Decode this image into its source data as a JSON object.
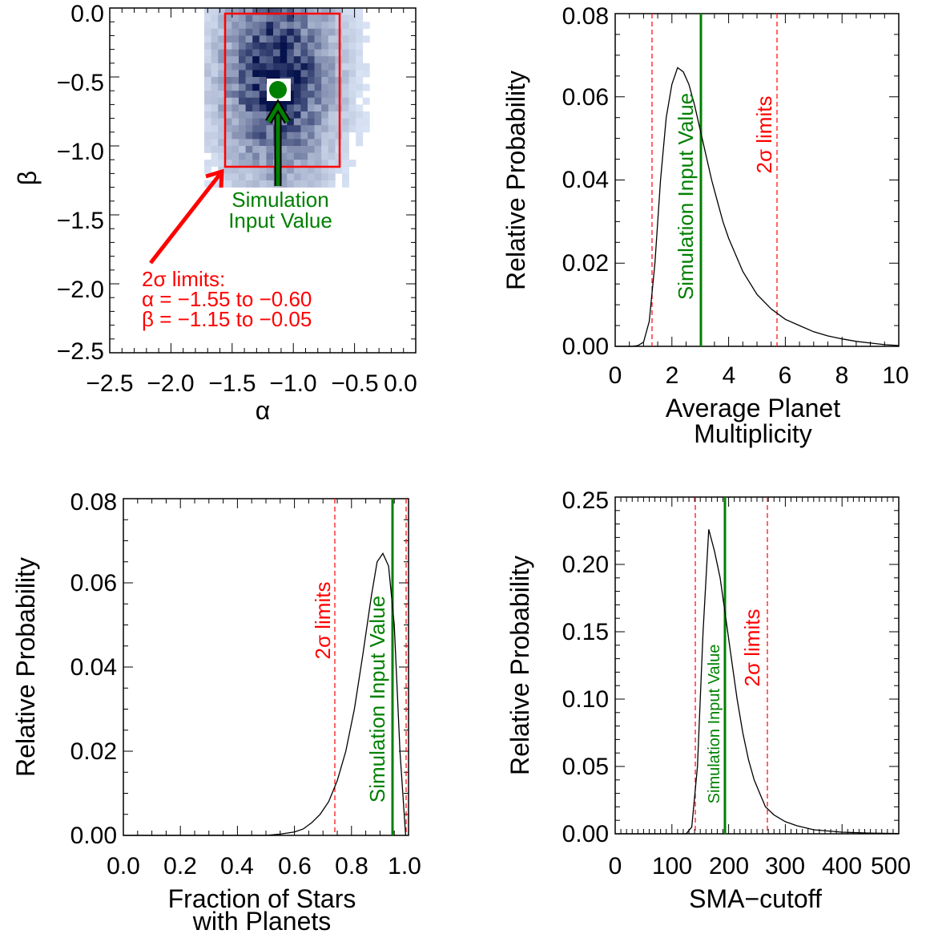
{
  "colors": {
    "red": "#ff0000",
    "green": "#008000",
    "curve": "#000000",
    "heat_low": "#e6f0ff",
    "heat_high": "#05124a"
  },
  "chart_data": [
    {
      "type": "heatmap",
      "xlabel": "α",
      "ylabel": "β",
      "xlim": [
        -2.5,
        0.0
      ],
      "ylim": [
        -2.5,
        0.0
      ],
      "xticks": [
        "−2.5",
        "−2.0",
        "−1.5",
        "−1.0",
        "−0.5",
        "0.0"
      ],
      "yticks": [
        "0.0",
        "−0.5",
        "−1.0",
        "−1.5",
        "−2.0",
        "−2.5"
      ],
      "limits_box": {
        "alpha": [
          -1.55,
          -0.6
        ],
        "beta": [
          -1.15,
          -0.05
        ]
      },
      "input_value": {
        "alpha": -1.1,
        "beta": -0.6
      },
      "annotations": {
        "input": [
          "Simulation",
          "Input Value"
        ],
        "limits": [
          "2σ limits:",
          "α = −1.55 to −0.60",
          "β = −1.15 to −0.05"
        ]
      }
    },
    {
      "type": "line",
      "xlabel": [
        "Average Planet",
        "Multiplicity"
      ],
      "ylabel": "Relative Probability",
      "xlim": [
        0,
        10
      ],
      "ylim": [
        0,
        0.08
      ],
      "xticks": [
        "0",
        "2",
        "4",
        "6",
        "8",
        "10"
      ],
      "yticks": [
        "0.00",
        "0.02",
        "0.04",
        "0.06",
        "0.08"
      ],
      "x": [
        0,
        0.6,
        0.8,
        1.0,
        1.2,
        1.4,
        1.6,
        1.8,
        2.0,
        2.2,
        2.4,
        2.6,
        2.8,
        3.0,
        3.2,
        3.4,
        3.6,
        3.8,
        4.0,
        4.5,
        5.0,
        5.5,
        6.0,
        6.5,
        7.0,
        7.5,
        8.0,
        8.5,
        9.0,
        9.5,
        10.0
      ],
      "y": [
        0,
        0,
        0.0002,
        0.001,
        0.006,
        0.02,
        0.04,
        0.055,
        0.063,
        0.067,
        0.066,
        0.063,
        0.058,
        0.052,
        0.046,
        0.04,
        0.035,
        0.03,
        0.026,
        0.018,
        0.0125,
        0.009,
        0.0065,
        0.005,
        0.0035,
        0.0025,
        0.0018,
        0.0012,
        0.0008,
        0.0004,
        0.0002
      ],
      "input_value": 3.0,
      "limits": [
        1.3,
        5.7
      ],
      "annotations": {
        "input": "Simulation Input Value",
        "limits": "2σ limits"
      }
    },
    {
      "type": "line",
      "xlabel": [
        "Fraction of Stars",
        "with Planets"
      ],
      "ylabel": "Relative Probability",
      "xlim": [
        0,
        1.0
      ],
      "ylim": [
        0,
        0.08
      ],
      "xticks": [
        "0.0",
        "0.2",
        "0.4",
        "0.6",
        "0.8",
        "1.0"
      ],
      "yticks": [
        "0.00",
        "0.02",
        "0.04",
        "0.06",
        "0.08"
      ],
      "x": [
        0,
        0.5,
        0.55,
        0.6,
        0.63,
        0.66,
        0.69,
        0.72,
        0.75,
        0.78,
        0.81,
        0.84,
        0.87,
        0.89,
        0.91,
        0.93,
        0.95,
        0.97,
        0.99
      ],
      "y": [
        0,
        0,
        0.0003,
        0.0008,
        0.0015,
        0.003,
        0.005,
        0.008,
        0.013,
        0.02,
        0.03,
        0.043,
        0.057,
        0.065,
        0.067,
        0.064,
        0.05,
        0.02,
        0
      ],
      "input_value": 0.95,
      "limits": [
        0.75,
        0.995
      ],
      "annotations": {
        "input": "Simulation Input Value",
        "limits": "2σ limits"
      }
    },
    {
      "type": "line",
      "xlabel": "SMA−cutoff",
      "ylabel": "Relative Probability",
      "xlim": [
        0,
        500
      ],
      "ylim": [
        0,
        0.25
      ],
      "xticks": [
        "0",
        "100",
        "200",
        "300",
        "400",
        "500"
      ],
      "yticks": [
        "0.00",
        "0.05",
        "0.10",
        "0.15",
        "0.20",
        "0.25"
      ],
      "x": [
        0,
        125,
        135,
        145,
        155,
        165,
        175,
        185,
        195,
        205,
        215,
        225,
        235,
        245,
        255,
        265,
        280,
        300,
        320,
        350,
        400,
        450,
        500
      ],
      "y": [
        0,
        0,
        0.005,
        0.05,
        0.15,
        0.226,
        0.21,
        0.19,
        0.16,
        0.13,
        0.1,
        0.075,
        0.055,
        0.04,
        0.03,
        0.02,
        0.014,
        0.009,
        0.006,
        0.003,
        0.0012,
        0.0005,
        0.0002
      ],
      "input_value": 190,
      "limits": [
        140,
        268
      ],
      "annotations": {
        "input": "Simulation Input Value",
        "limits": "2σ limits"
      }
    }
  ]
}
